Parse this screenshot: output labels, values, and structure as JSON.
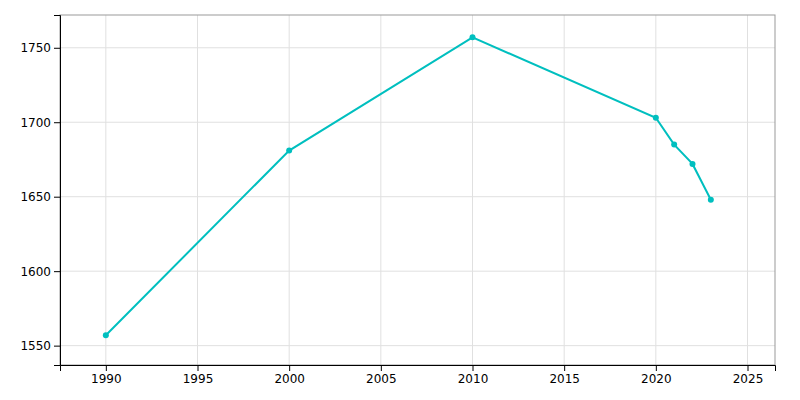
{
  "chart_data": {
    "type": "line",
    "x": [
      1990,
      2000,
      2010,
      2020,
      2021,
      2022,
      2023
    ],
    "values": [
      1557,
      1681,
      1757,
      1703,
      1685,
      1672,
      1648
    ],
    "color": "#00BFBF",
    "marker": "circle",
    "xlim": [
      1987.5,
      2026.5
    ],
    "ylim": [
      1537,
      1772
    ],
    "xticks": [
      1990,
      1995,
      2000,
      2005,
      2010,
      2015,
      2020,
      2025
    ],
    "yticks": [
      1550,
      1600,
      1650,
      1700,
      1750
    ],
    "grid": true
  }
}
